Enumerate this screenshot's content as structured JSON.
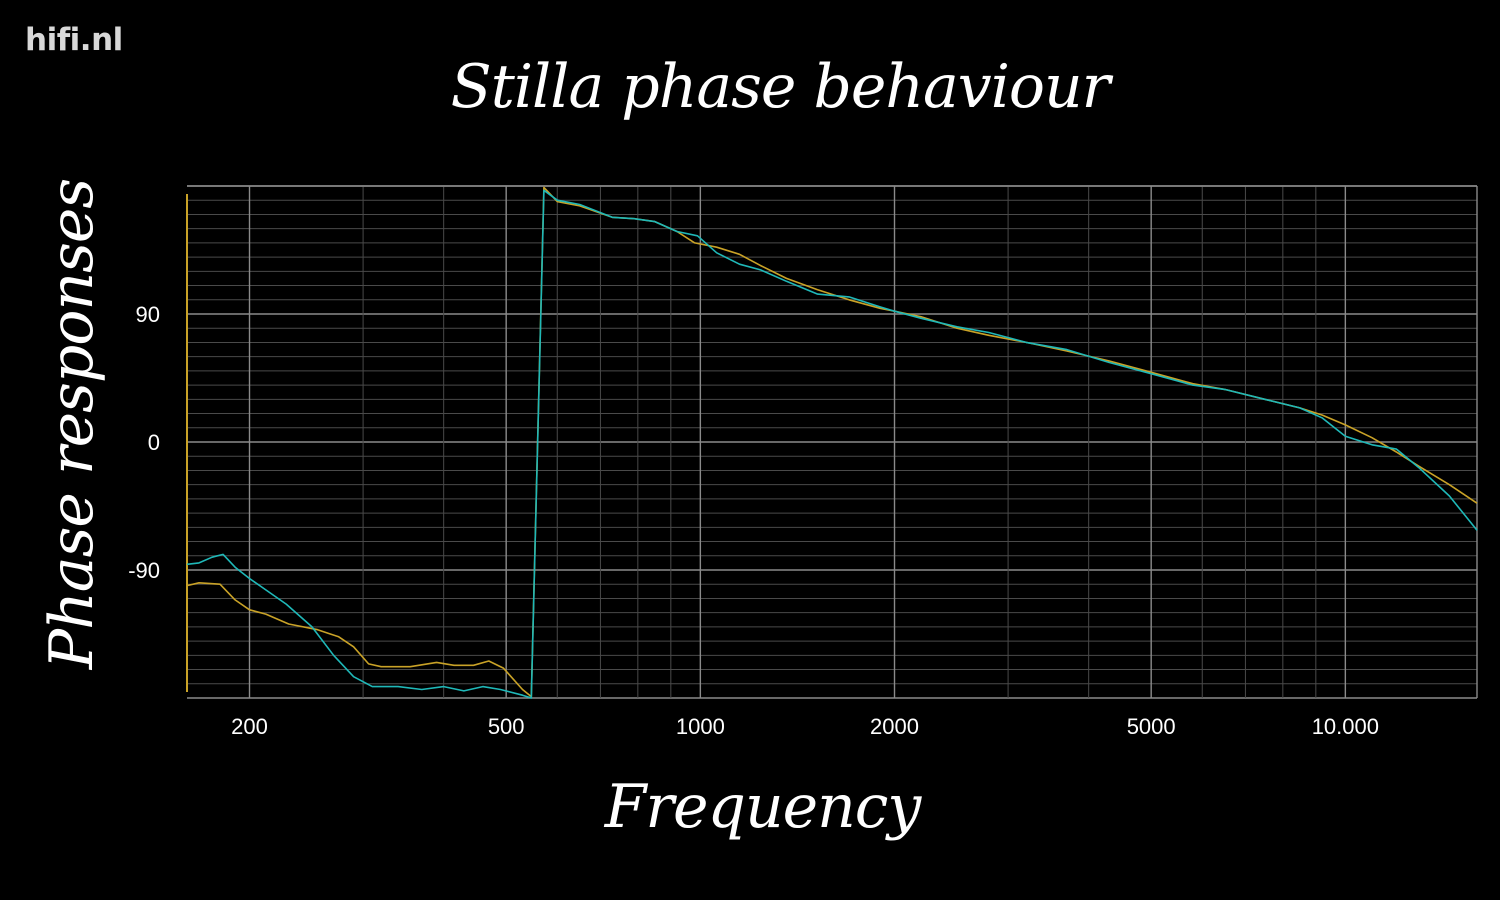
{
  "logo": "hifi.nl",
  "chart_data": {
    "type": "line",
    "title": "Stilla phase behaviour",
    "xlabel": "Frequency",
    "ylabel": "Phase responses",
    "x_scale": "log",
    "xlim": [
      160,
      16000
    ],
    "ylim": [
      -180,
      180
    ],
    "grid": true,
    "x_ticks": [
      {
        "value": 200,
        "label": "200"
      },
      {
        "value": 500,
        "label": "500"
      },
      {
        "value": 1000,
        "label": "1000"
      },
      {
        "value": 2000,
        "label": "2000"
      },
      {
        "value": 5000,
        "label": "5000"
      },
      {
        "value": 10000,
        "label": "10.000"
      }
    ],
    "y_ticks": [
      {
        "value": 90,
        "label": "90"
      },
      {
        "value": 0,
        "label": "0"
      },
      {
        "value": -90,
        "label": "-90"
      }
    ],
    "colors": {
      "background": "#000000",
      "grid_major": "#8a8a8a",
      "grid_minor": "#4a4a4a"
    },
    "series": [
      {
        "color": "#c9a227",
        "points": [
          [
            160,
            -101
          ],
          [
            167,
            -99
          ],
          [
            180,
            -100
          ],
          [
            190,
            -111
          ],
          [
            200,
            -118
          ],
          [
            212,
            -121
          ],
          [
            230,
            -128
          ],
          [
            255,
            -132
          ],
          [
            275,
            -137
          ],
          [
            290,
            -144
          ],
          [
            306,
            -156
          ],
          [
            320,
            -158
          ],
          [
            355,
            -158
          ],
          [
            390,
            -155
          ],
          [
            415,
            -157
          ],
          [
            445,
            -157
          ],
          [
            470,
            -154
          ],
          [
            495,
            -159
          ],
          [
            530,
            -174
          ],
          [
            547,
            -179
          ],
          [
            572,
            179
          ],
          [
            600,
            169
          ],
          [
            650,
            166
          ],
          [
            730,
            158
          ],
          [
            790,
            157
          ],
          [
            850,
            155
          ],
          [
            920,
            148
          ],
          [
            980,
            140
          ],
          [
            1060,
            137
          ],
          [
            1150,
            132
          ],
          [
            1240,
            124
          ],
          [
            1360,
            115
          ],
          [
            1520,
            107
          ],
          [
            1700,
            100
          ],
          [
            1900,
            94
          ],
          [
            2000,
            92
          ],
          [
            2200,
            88
          ],
          [
            2500,
            80
          ],
          [
            2800,
            75
          ],
          [
            3200,
            70
          ],
          [
            3700,
            64
          ],
          [
            4300,
            57
          ],
          [
            5000,
            49
          ],
          [
            5800,
            41
          ],
          [
            6500,
            37
          ],
          [
            7500,
            30
          ],
          [
            8500,
            24
          ],
          [
            9200,
            19
          ],
          [
            10000,
            12
          ],
          [
            11000,
            3
          ],
          [
            12000,
            -7
          ],
          [
            13000,
            -17
          ],
          [
            14500,
            -30
          ],
          [
            16000,
            -43
          ]
        ]
      },
      {
        "color": "#1fb8b8",
        "points": [
          [
            160,
            -86
          ],
          [
            167,
            -85
          ],
          [
            175,
            -81
          ],
          [
            182,
            -79
          ],
          [
            190,
            -88
          ],
          [
            200,
            -96
          ],
          [
            212,
            -104
          ],
          [
            228,
            -114
          ],
          [
            250,
            -130
          ],
          [
            270,
            -150
          ],
          [
            290,
            -165
          ],
          [
            310,
            -172
          ],
          [
            340,
            -172
          ],
          [
            370,
            -174
          ],
          [
            400,
            -172
          ],
          [
            430,
            -175
          ],
          [
            460,
            -172
          ],
          [
            490,
            -174
          ],
          [
            530,
            -178
          ],
          [
            547,
            -180
          ],
          [
            572,
            177
          ],
          [
            600,
            170
          ],
          [
            650,
            167
          ],
          [
            730,
            158
          ],
          [
            790,
            157
          ],
          [
            850,
            155
          ],
          [
            920,
            148
          ],
          [
            990,
            145
          ],
          [
            1060,
            133
          ],
          [
            1150,
            125
          ],
          [
            1240,
            121
          ],
          [
            1360,
            113
          ],
          [
            1520,
            104
          ],
          [
            1700,
            102
          ],
          [
            1900,
            95
          ],
          [
            2000,
            92
          ],
          [
            2200,
            87
          ],
          [
            2500,
            81
          ],
          [
            2800,
            77
          ],
          [
            3200,
            70
          ],
          [
            3700,
            65
          ],
          [
            4300,
            56
          ],
          [
            5000,
            48
          ],
          [
            5800,
            40
          ],
          [
            6500,
            37
          ],
          [
            7500,
            30
          ],
          [
            8500,
            24
          ],
          [
            9200,
            17
          ],
          [
            10000,
            4
          ],
          [
            11000,
            -2
          ],
          [
            12000,
            -5
          ],
          [
            13000,
            -18
          ],
          [
            14500,
            -38
          ],
          [
            16000,
            -62
          ]
        ]
      }
    ]
  }
}
